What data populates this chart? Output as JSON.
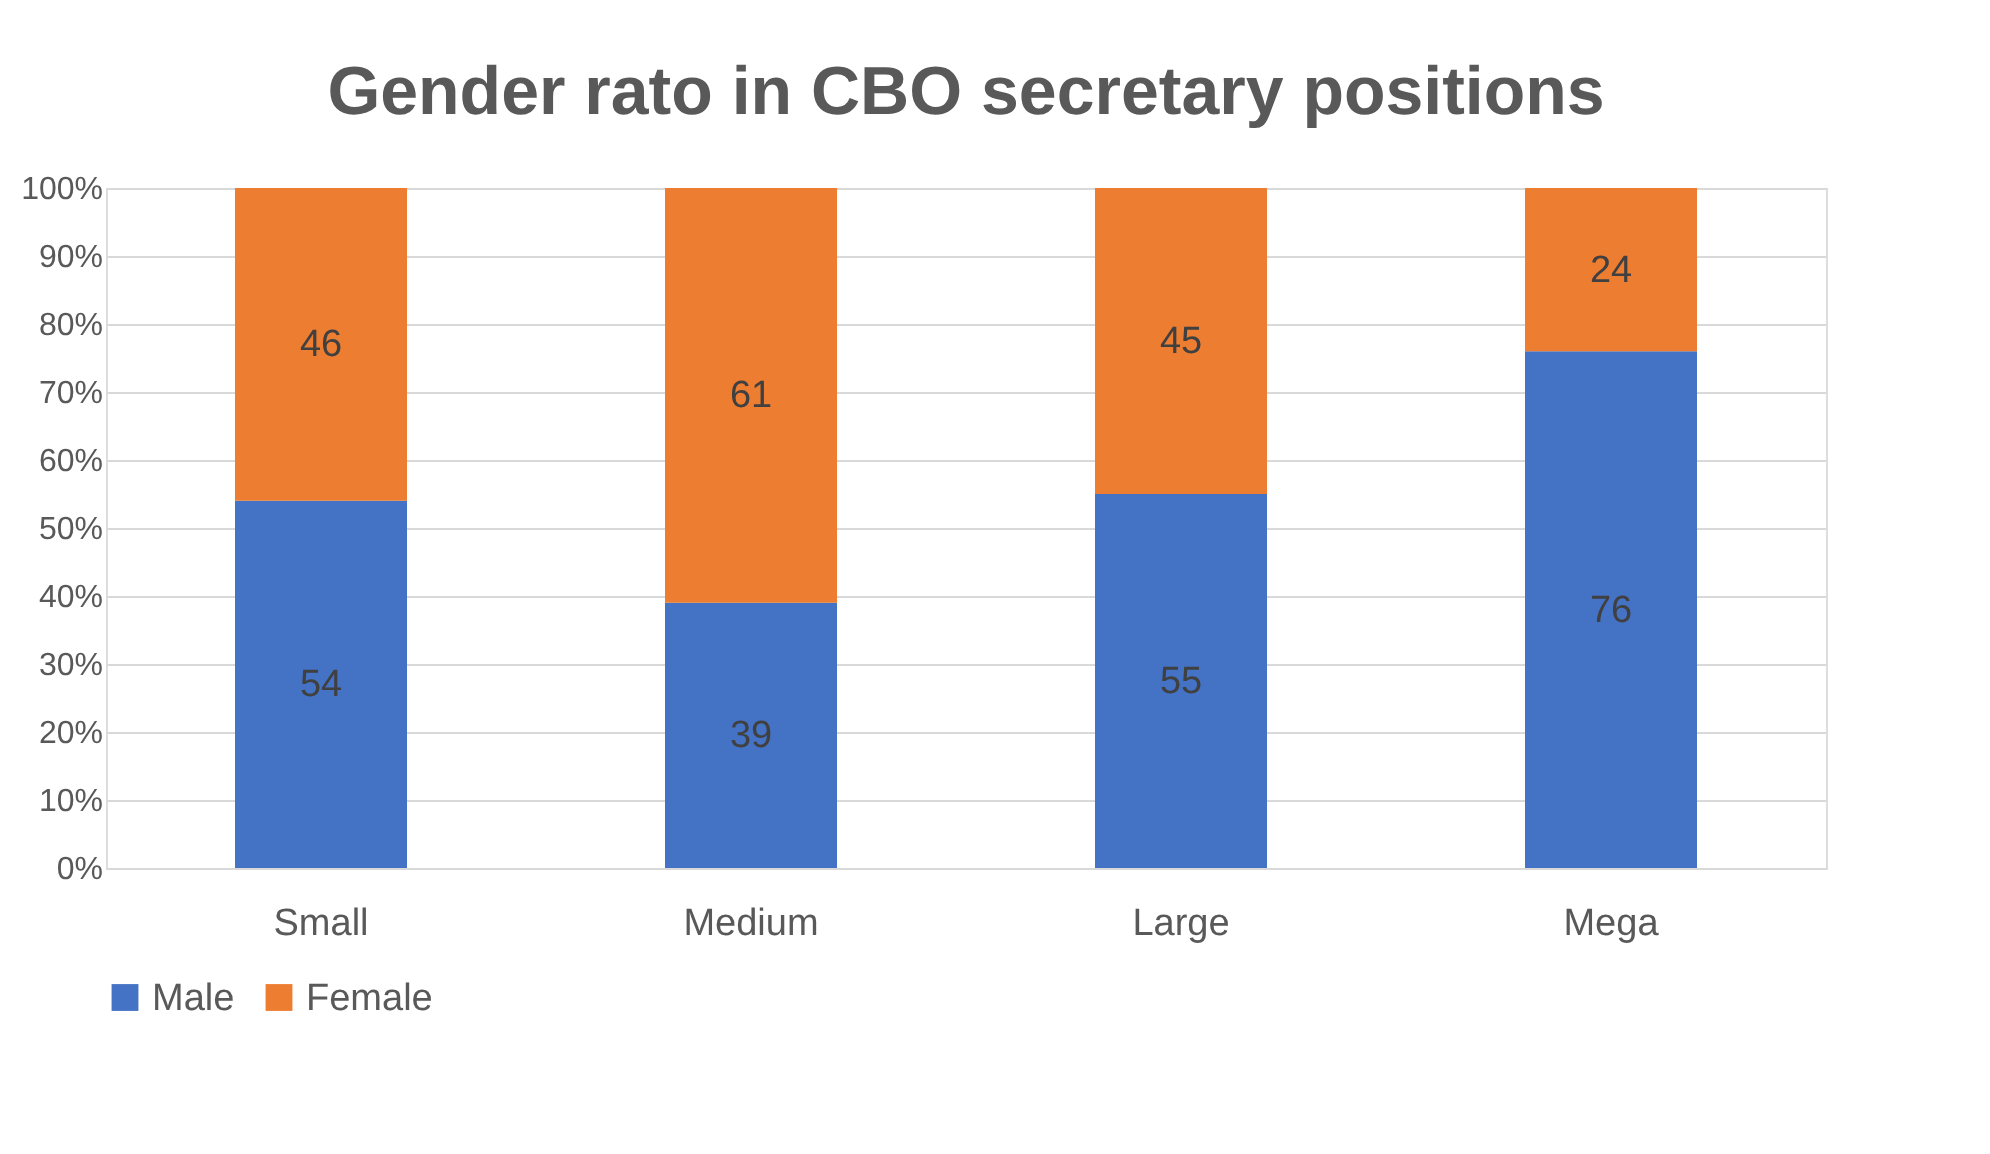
{
  "chart_data": {
    "type": "bar",
    "title": "Gender rato in CBO secretary positions",
    "categories": [
      "Small",
      "Medium",
      "Large",
      "Mega"
    ],
    "series": [
      {
        "name": "Male",
        "color": "#4472c4",
        "values": [
          54,
          39,
          55,
          76
        ]
      },
      {
        "name": "Female",
        "color": "#ed7d31",
        "values": [
          46,
          61,
          45,
          24
        ]
      }
    ],
    "stacked": true,
    "data_labels": true,
    "ylim": [
      0,
      100
    ],
    "yticks": [
      {
        "value": 0,
        "label": "0%"
      },
      {
        "value": 10,
        "label": "10%"
      },
      {
        "value": 20,
        "label": "20%"
      },
      {
        "value": 30,
        "label": "30%"
      },
      {
        "value": 40,
        "label": "40%"
      },
      {
        "value": 50,
        "label": "50%"
      },
      {
        "value": 60,
        "label": "60%"
      },
      {
        "value": 70,
        "label": "70%"
      },
      {
        "value": 80,
        "label": "80%"
      },
      {
        "value": 90,
        "label": "90%"
      },
      {
        "value": 100,
        "label": "100%"
      }
    ],
    "grid": "y",
    "legend": "bottom"
  }
}
